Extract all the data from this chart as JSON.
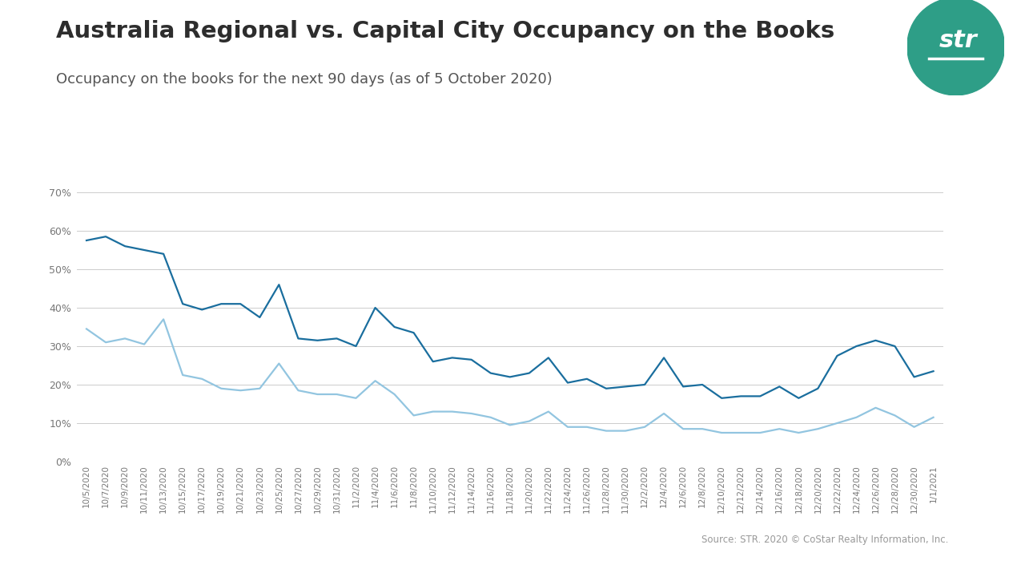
{
  "title": "Australia Regional vs. Capital City Occupancy on the Books",
  "subtitle": "Occupancy on the books for the next 90 days (as of 5 October 2020)",
  "source": "Source: STR. 2020 © CoStar Realty Information, Inc.",
  "regional_color": "#1a6e9e",
  "capital_color": "#92c5e0",
  "background_color": "#ffffff",
  "grid_color": "#cccccc",
  "title_color": "#2d2d2d",
  "subtitle_color": "#555555",
  "ylim": [
    0,
    0.75
  ],
  "yticks": [
    0.0,
    0.1,
    0.2,
    0.3,
    0.4,
    0.5,
    0.6,
    0.7
  ],
  "dates": [
    "10/5/2020",
    "10/7/2020",
    "10/9/2020",
    "10/11/2020",
    "10/13/2020",
    "10/15/2020",
    "10/17/2020",
    "10/19/2020",
    "10/21/2020",
    "10/23/2020",
    "10/25/2020",
    "10/27/2020",
    "10/29/2020",
    "10/31/2020",
    "11/2/2020",
    "11/4/2020",
    "11/6/2020",
    "11/8/2020",
    "11/10/2020",
    "11/12/2020",
    "11/14/2020",
    "11/16/2020",
    "11/18/2020",
    "11/20/2020",
    "11/22/2020",
    "11/24/2020",
    "11/26/2020",
    "11/28/2020",
    "11/30/2020",
    "12/2/2020",
    "12/4/2020",
    "12/6/2020",
    "12/8/2020",
    "12/10/2020",
    "12/12/2020",
    "12/14/2020",
    "12/16/2020",
    "12/18/2020",
    "12/20/2020",
    "12/22/2020",
    "12/24/2020",
    "12/26/2020",
    "12/28/2020",
    "12/30/2020",
    "1/1/2021"
  ],
  "regional": [
    0.575,
    0.585,
    0.56,
    0.55,
    0.54,
    0.41,
    0.395,
    0.41,
    0.41,
    0.375,
    0.46,
    0.32,
    0.315,
    0.32,
    0.3,
    0.4,
    0.35,
    0.335,
    0.26,
    0.27,
    0.265,
    0.23,
    0.22,
    0.23,
    0.27,
    0.205,
    0.215,
    0.19,
    0.195,
    0.2,
    0.27,
    0.195,
    0.2,
    0.165,
    0.17,
    0.17,
    0.195,
    0.165,
    0.19,
    0.275,
    0.3,
    0.315,
    0.3,
    0.22,
    0.235
  ],
  "capital": [
    0.345,
    0.31,
    0.32,
    0.305,
    0.37,
    0.225,
    0.215,
    0.19,
    0.185,
    0.19,
    0.255,
    0.185,
    0.175,
    0.175,
    0.165,
    0.21,
    0.175,
    0.12,
    0.13,
    0.13,
    0.125,
    0.115,
    0.095,
    0.105,
    0.13,
    0.09,
    0.09,
    0.08,
    0.08,
    0.09,
    0.125,
    0.085,
    0.085,
    0.075,
    0.075,
    0.075,
    0.085,
    0.075,
    0.085,
    0.1,
    0.115,
    0.14,
    0.12,
    0.09,
    0.115
  ],
  "logo_color": "#2e9e87",
  "logo_text": "str"
}
